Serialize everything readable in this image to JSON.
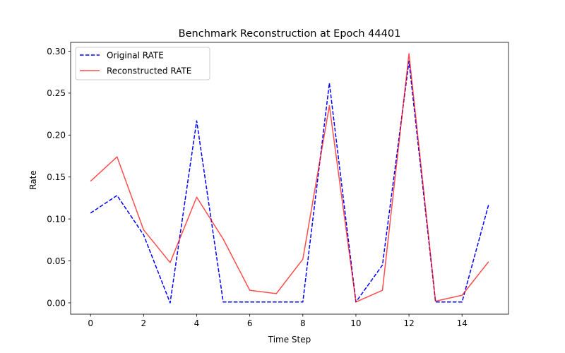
{
  "chart_data": {
    "type": "line",
    "title": "Benchmark Reconstruction at Epoch 44401",
    "xlabel": "Time Step",
    "ylabel": "Rate",
    "xlim": [
      -0.75,
      15.75
    ],
    "ylim": [
      -0.0135,
      0.3105
    ],
    "xticks": [
      0,
      2,
      4,
      6,
      8,
      10,
      12,
      14
    ],
    "yticks": [
      0.0,
      0.05,
      0.1,
      0.15,
      0.2,
      0.25,
      0.3
    ],
    "ytick_labels": [
      "0.00",
      "0.05",
      "0.10",
      "0.15",
      "0.20",
      "0.25",
      "0.30"
    ],
    "x": [
      0,
      1,
      2,
      3,
      4,
      5,
      6,
      7,
      8,
      9,
      10,
      11,
      12,
      13,
      14,
      15
    ],
    "series": [
      {
        "name": "Original RATE",
        "color": "#0000ff",
        "style": "dashed",
        "values": [
          0.107,
          0.128,
          0.081,
          0.0,
          0.217,
          0.001,
          0.001,
          0.001,
          0.001,
          0.262,
          0.001,
          0.045,
          0.288,
          0.001,
          0.001,
          0.117
        ]
      },
      {
        "name": "Reconstructed RATE",
        "color": "#ff0000",
        "style": "solid",
        "values": [
          0.145,
          0.174,
          0.087,
          0.048,
          0.126,
          0.076,
          0.015,
          0.011,
          0.052,
          0.235,
          0.001,
          0.015,
          0.297,
          0.002,
          0.009,
          0.049
        ]
      }
    ],
    "legend_position": "top-left",
    "grid": false
  }
}
